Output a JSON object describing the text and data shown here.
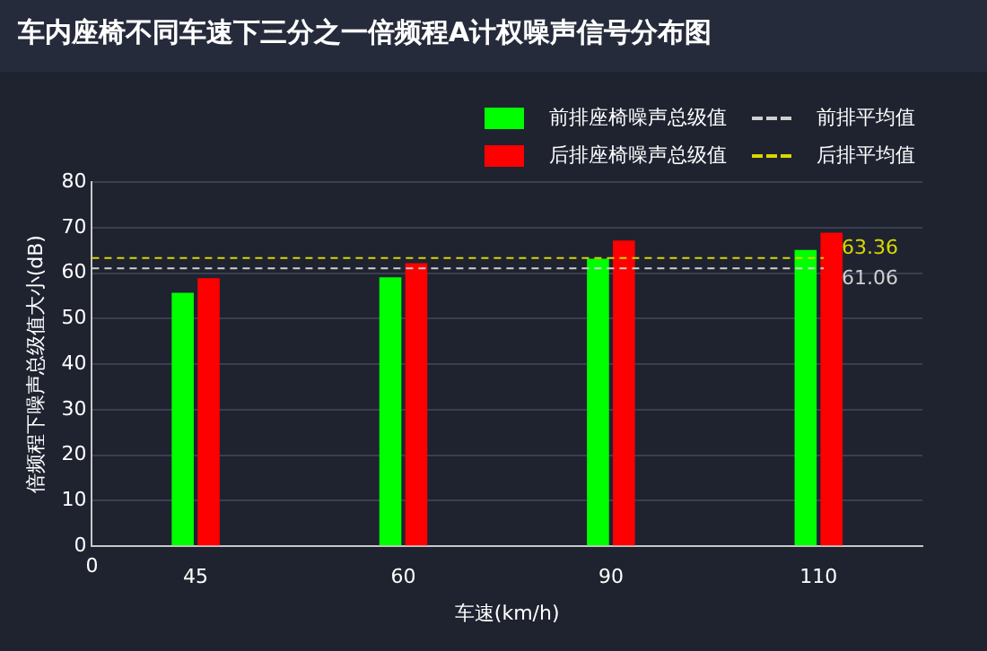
{
  "chart_data": {
    "type": "bar",
    "title": "车内座椅不同车速下三分之一倍频程A计权噪声信号分布图",
    "xlabel": "车速(km/h)",
    "ylabel": "倍频程下噪声总级值大小(dB)",
    "categories": [
      "45",
      "60",
      "90",
      "110"
    ],
    "series": [
      {
        "name": "前排座椅噪声总级值",
        "color": "#00ff00",
        "values": [
          55.7,
          59.1,
          63.2,
          65.1
        ]
      },
      {
        "name": "后排座椅噪声总级值",
        "color": "#ff0000",
        "values": [
          58.9,
          62.2,
          67.2,
          68.9
        ]
      }
    ],
    "ylim": [
      0,
      80
    ],
    "yticks": [
      0,
      10,
      20,
      30,
      40,
      50,
      60,
      70,
      80
    ],
    "grid": "y",
    "legend": "top right",
    "ref_lines": [
      {
        "axis": "y",
        "value": 61.06,
        "label": "前排平均值",
        "color": "#d0d0d0",
        "line_style": "dashed"
      },
      {
        "axis": "y",
        "value": 63.36,
        "label": "后排平均值",
        "color": "#d8d800",
        "line_style": "dashed"
      }
    ],
    "annotations": [
      "0",
      "61.06",
      "63.36"
    ]
  }
}
